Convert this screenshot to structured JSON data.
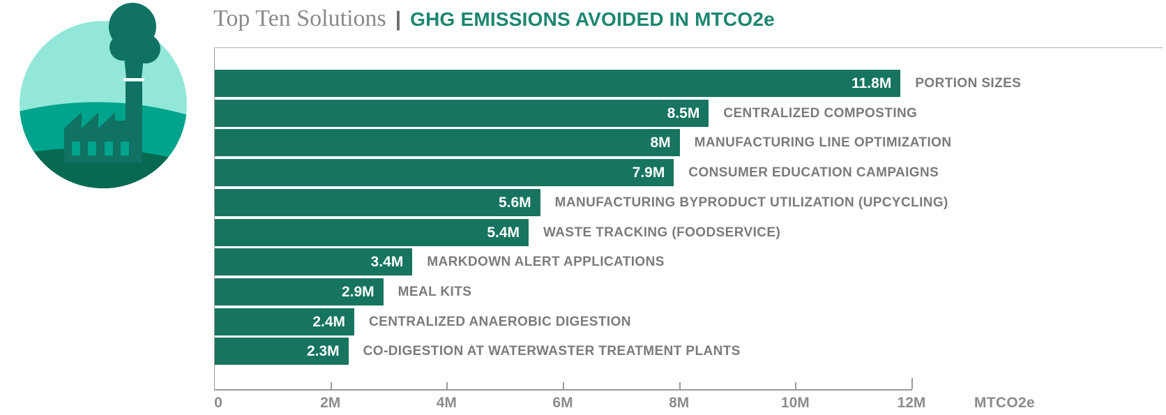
{
  "header": {
    "title_serif": "Top Ten Solutions",
    "separator": "|",
    "title_bold": "GHG EMISSIONS AVOIDED IN MTCO2e"
  },
  "icon": {
    "name": "factory-smokestack-landscape",
    "colors": {
      "sky": "#92E7D8",
      "hill": "#00A38B",
      "ground": "#086951",
      "factory": "#0F7263",
      "windows": "#00A38B"
    }
  },
  "colors": {
    "bar_fill": "#16745F",
    "title_accent": "#1C8671",
    "bar_value_text": "#FFFFFF",
    "category_label": "#7B7B7B",
    "axis_label": "#8C8C8C",
    "axis_line": "#9B9B9B"
  },
  "chart_data": {
    "type": "bar",
    "orientation": "horizontal",
    "title": "Top Ten Solutions | GHG EMISSIONS AVOIDED IN MTCO2e",
    "xlabel": "MTCO2e",
    "xlim": [
      0,
      12000000
    ],
    "grid": false,
    "legend": false,
    "categories": [
      "PORTION SIZES",
      "CENTRALIZED COMPOSTING",
      "MANUFACTURING LINE OPTIMIZATION",
      "CONSUMER EDUCATION CAMPAIGNS",
      "MANUFACTURING BYPRODUCT UTILIZATION (UPCYCLING)",
      "WASTE TRACKING (FOODSERVICE)",
      "MARKDOWN ALERT APPLICATIONS",
      "MEAL KITS",
      "CENTRALIZED ANAEROBIC DIGESTION",
      "CO-DIGESTION AT WATERWASTER TREATMENT PLANTS"
    ],
    "values": [
      11800000,
      8500000,
      8000000,
      7900000,
      5600000,
      5400000,
      3400000,
      2900000,
      2400000,
      2300000
    ],
    "value_labels": [
      "11.8M",
      "8.5M",
      "8M",
      "7.9M",
      "5.6M",
      "5.4M",
      "3.4M",
      "2.9M",
      "2.4M",
      "2.3M"
    ],
    "x_ticks": [
      {
        "value": 0,
        "label": "0"
      },
      {
        "value": 2000000,
        "label": "2M"
      },
      {
        "value": 4000000,
        "label": "4M"
      },
      {
        "value": 6000000,
        "label": "6M"
      },
      {
        "value": 8000000,
        "label": "8M"
      },
      {
        "value": 10000000,
        "label": "10M"
      },
      {
        "value": 12000000,
        "label": "12M"
      }
    ]
  }
}
